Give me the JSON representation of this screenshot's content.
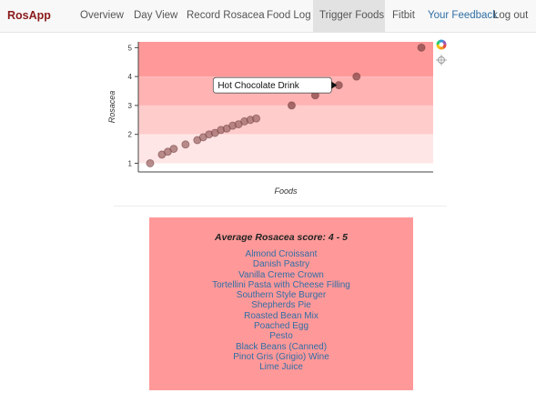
{
  "nav": {
    "brand": "RosApp",
    "items": [
      "Overview",
      "Day View",
      "Record Rosacea",
      "Food Log",
      "Trigger Foods",
      "Fitbit",
      "Your Feedback",
      "Log out"
    ],
    "active": "Trigger Foods"
  },
  "toolbar": {
    "icons": [
      "color-wheel-icon",
      "crosshair-icon"
    ]
  },
  "chart_data": {
    "type": "scatter",
    "xlabel": "Foods",
    "ylabel": "Rosacea",
    "ylim": [
      0.7,
      5.2
    ],
    "yticks": [
      1,
      2,
      3,
      4,
      5
    ],
    "bands": [
      {
        "from": 4,
        "to": 5.2,
        "color": "#ff9999"
      },
      {
        "from": 3,
        "to": 4,
        "color": "#ffb3b3"
      },
      {
        "from": 2,
        "to": 3,
        "color": "#ffcccc"
      },
      {
        "from": 1,
        "to": 2,
        "color": "#ffe6e6"
      }
    ],
    "points": [
      {
        "x": 1,
        "y": 1.0
      },
      {
        "x": 2,
        "y": 1.3
      },
      {
        "x": 2.5,
        "y": 1.4
      },
      {
        "x": 3,
        "y": 1.5
      },
      {
        "x": 4,
        "y": 1.65
      },
      {
        "x": 5,
        "y": 1.8
      },
      {
        "x": 5.5,
        "y": 1.9
      },
      {
        "x": 6,
        "y": 2.0
      },
      {
        "x": 6.5,
        "y": 2.05
      },
      {
        "x": 7,
        "y": 2.15
      },
      {
        "x": 7.5,
        "y": 2.2
      },
      {
        "x": 8,
        "y": 2.3
      },
      {
        "x": 8.5,
        "y": 2.35
      },
      {
        "x": 9,
        "y": 2.45
      },
      {
        "x": 9.5,
        "y": 2.5
      },
      {
        "x": 10,
        "y": 2.55
      },
      {
        "x": 13,
        "y": 3.0
      },
      {
        "x": 15,
        "y": 3.35
      },
      {
        "x": 17,
        "y": 3.7
      },
      {
        "x": 18.5,
        "y": 4.0
      },
      {
        "x": 24,
        "y": 5.0
      }
    ],
    "xlim": [
      0,
      25
    ],
    "tooltip": {
      "text": "Hot Chocolate Drink",
      "x": 17,
      "y": 3.7
    }
  },
  "score_box": {
    "title": "Average Rosacea score: 4 - 5",
    "foods": [
      "Almond Croissant",
      "Danish Pastry",
      "Vanilla Creme Crown",
      "Tortellini Pasta with Cheese Filling",
      "Southern Style Burger",
      "Shepherds Pie",
      "Roasted Bean Mix",
      "Poached Egg",
      "Pesto",
      "Black Beans (Canned)",
      "Pinot Gris (Grigio) Wine",
      "Lime Juice"
    ]
  }
}
